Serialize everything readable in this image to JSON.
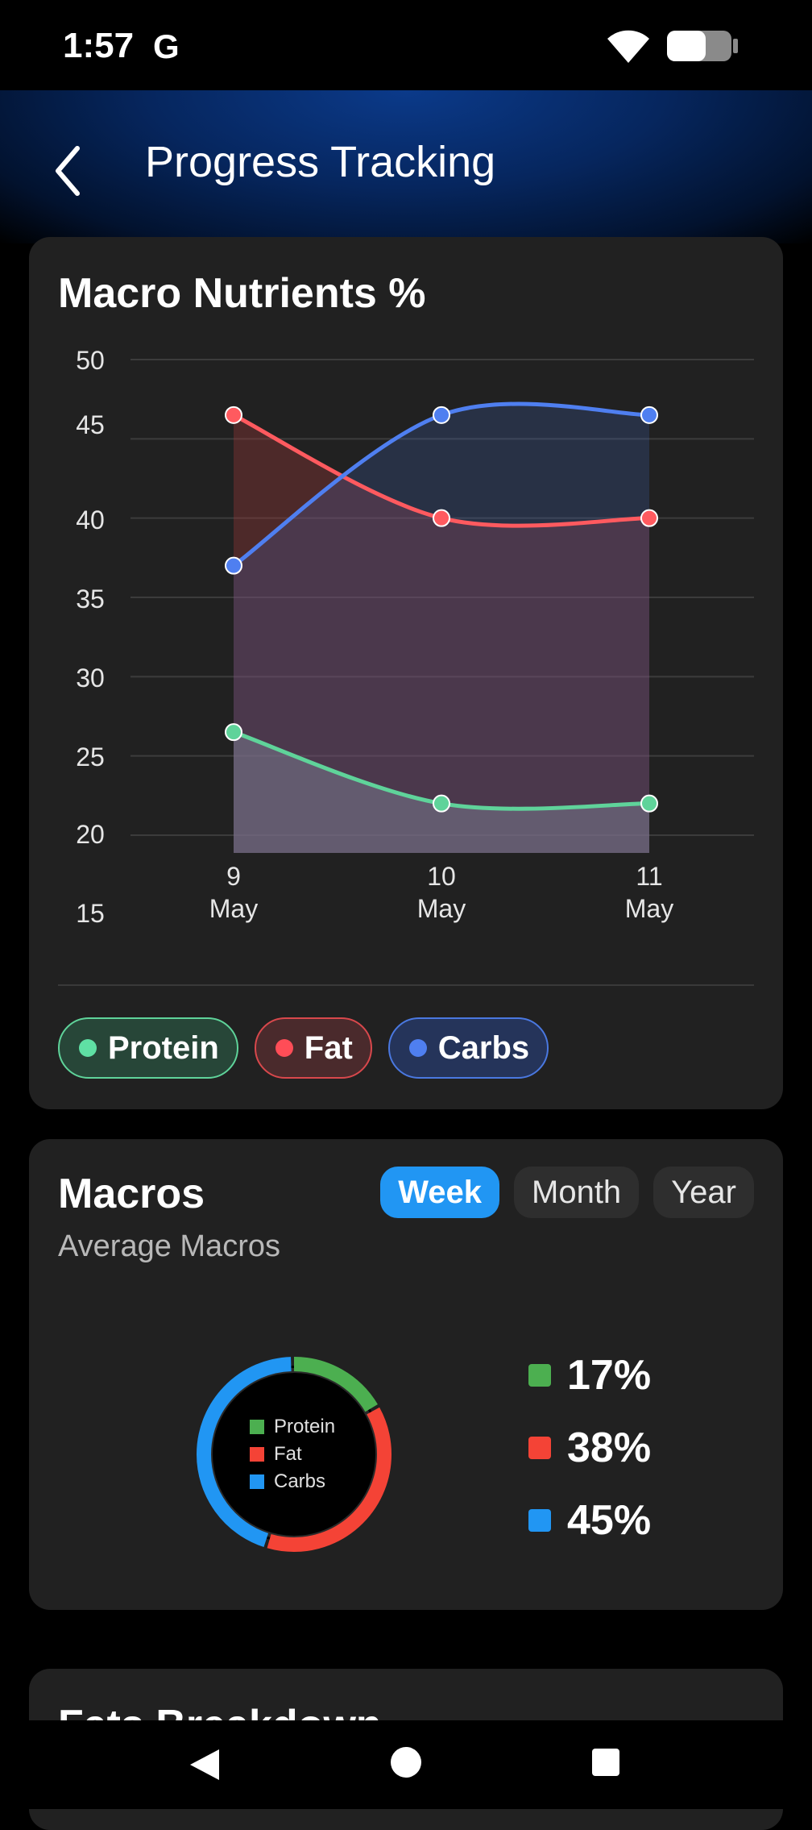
{
  "status_bar": {
    "time": "1:57",
    "carrier_glyph": "G"
  },
  "header": {
    "title": "Progress Tracking"
  },
  "macro_chart_card": {
    "title": "Macro Nutrients %",
    "legend": [
      {
        "label": "Protein",
        "color": "#5fe0a4"
      },
      {
        "label": "Fat",
        "color": "#ff4d57"
      },
      {
        "label": "Carbs",
        "color": "#4f7ff0"
      }
    ]
  },
  "macros_card": {
    "title": "Macros",
    "subtitle": "Average Macros",
    "periods": [
      "Week",
      "Month",
      "Year"
    ],
    "selected_period": "Week",
    "donut_legend": [
      "Protein",
      "Fat",
      "Carbs"
    ],
    "percentages": [
      {
        "label": "Protein",
        "value": "17%",
        "color": "#4caf50"
      },
      {
        "label": "Fat",
        "value": "38%",
        "color": "#f44336"
      },
      {
        "label": "Carbs",
        "value": "45%",
        "color": "#2196f3"
      }
    ]
  },
  "fats_card": {
    "title": "Fats Breakdown"
  },
  "chart_data": {
    "type": "line",
    "title": "Macro Nutrients %",
    "x": [
      "9 May",
      "10 May",
      "11 May"
    ],
    "x_tick_lines": [
      [
        "9",
        "May"
      ],
      [
        "10",
        "May"
      ],
      [
        "11",
        "May"
      ]
    ],
    "y_ticks": [
      50,
      45,
      40,
      35,
      30,
      25,
      20,
      15
    ],
    "ylim": [
      15,
      50
    ],
    "grid": true,
    "series": [
      {
        "name": "Protein",
        "values": [
          26.5,
          22,
          22
        ],
        "color": "#5fd39a"
      },
      {
        "name": "Fat",
        "values": [
          46.5,
          40,
          40
        ],
        "color": "#ff5a5f"
      },
      {
        "name": "Carbs",
        "values": [
          37,
          46.5,
          46.5
        ],
        "color": "#4f7ff0"
      }
    ]
  }
}
